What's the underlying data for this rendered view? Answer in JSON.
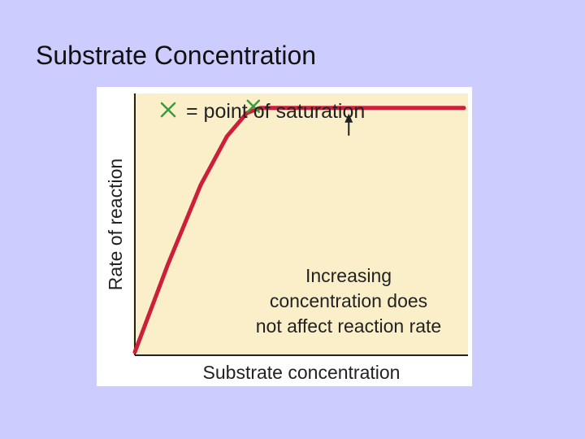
{
  "slide": {
    "title": "Substrate Concentration"
  },
  "chart_data": {
    "type": "line",
    "title": "",
    "xlabel": "Substrate concentration",
    "ylabel": "Rate of reaction",
    "xlim": [
      0,
      100
    ],
    "ylim": [
      0,
      100
    ],
    "grid": false,
    "series": [
      {
        "x": [
          0,
          10,
          20,
          28,
          34,
          38,
          100
        ],
        "y": [
          0,
          34,
          65,
          84,
          93,
          95,
          95
        ]
      }
    ],
    "saturation_point": {
      "x": 36,
      "y": 95
    },
    "legend": {
      "marker": "×",
      "text": "= point of saturation",
      "placement": "top-left"
    },
    "annotation": {
      "lines": [
        "Increasing",
        "concentration does",
        "not affect reaction rate"
      ],
      "points_to": {
        "x": 65,
        "y": 95
      }
    },
    "colors": {
      "plot_background": "#fbefc9",
      "curve": "#cc1f3a",
      "marker": "#3c9a3c",
      "axis": "#222222"
    }
  }
}
